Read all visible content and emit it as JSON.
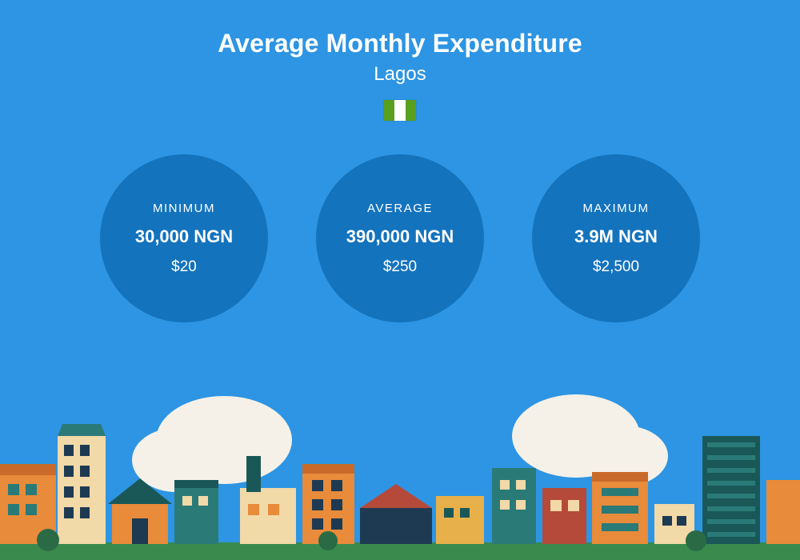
{
  "background_color": "#2d95e3",
  "title": "Average Monthly Expenditure",
  "subtitle": "Lagos",
  "title_color": "#ffffff",
  "title_fontsize": 32,
  "subtitle_fontsize": 24,
  "flag": {
    "left_color": "#5aa01f",
    "center_color": "#ffffff",
    "right_color": "#5aa01f"
  },
  "circles": {
    "fill_color": "#1473bd",
    "text_color": "#ffffff",
    "diameter": 210,
    "gap": 60,
    "items": [
      {
        "label": "MINIMUM",
        "value": "30,000 NGN",
        "usd": "$20"
      },
      {
        "label": "AVERAGE",
        "value": "390,000 NGN",
        "usd": "$250"
      },
      {
        "label": "MAXIMUM",
        "value": "3.9M NGN",
        "usd": "$2,500"
      }
    ]
  },
  "cityscape": {
    "ground_color": "#3a8a4e",
    "cloud_color": "#f5f1e8",
    "palette": {
      "orange": "#e88b3a",
      "dark_orange": "#c96a2a",
      "cream": "#f2d9a8",
      "teal": "#2a7a78",
      "dark_teal": "#1a5858",
      "navy": "#1d3a52",
      "brick": "#b54a3a",
      "yellow": "#e8b04a",
      "dark_green": "#2a6a45"
    }
  }
}
